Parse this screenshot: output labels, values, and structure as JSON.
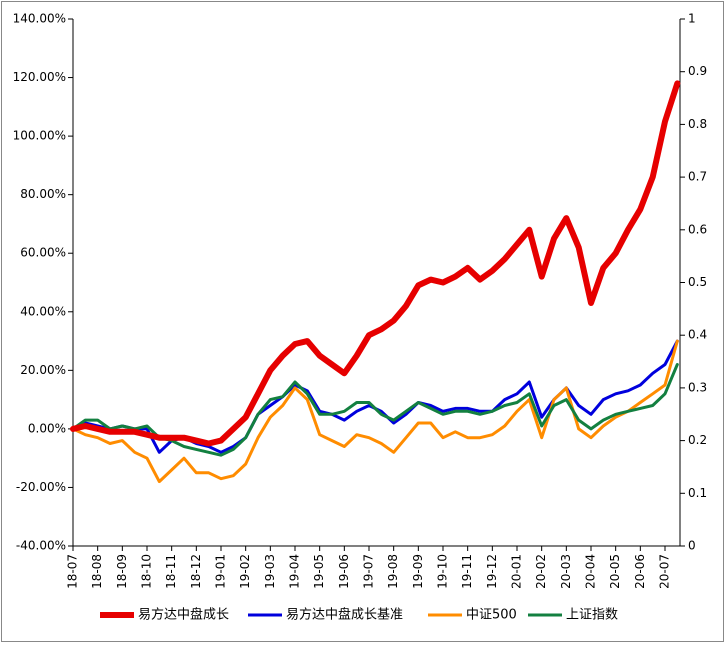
{
  "chart_data": {
    "type": "line",
    "categories": [
      "18-07",
      null,
      "18-08",
      null,
      "18-09",
      null,
      "18-10",
      null,
      "18-11",
      null,
      "18-12",
      null,
      "19-01",
      null,
      "19-02",
      null,
      "19-03",
      null,
      "19-04",
      null,
      "19-05",
      null,
      "19-06",
      null,
      "19-07",
      null,
      "19-08",
      null,
      "19-09",
      null,
      "19-10",
      null,
      "19-11",
      null,
      "19-12",
      null,
      "20-01",
      null,
      "20-02",
      null,
      "20-03",
      null,
      "20-04",
      null,
      "20-05",
      null,
      "20-06",
      null,
      "20-07",
      null
    ],
    "series": [
      {
        "name": "易方达中盘成长",
        "color": "#e60000",
        "width": 6,
        "values": [
          0,
          1,
          0,
          -1,
          -1,
          -1,
          -2,
          -3,
          -3,
          -3,
          -4,
          -5,
          -4,
          0,
          4,
          12,
          20,
          25,
          29,
          30,
          25,
          22,
          19,
          25,
          32,
          34,
          37,
          42,
          49,
          51,
          50,
          52,
          55,
          51,
          54,
          58,
          63,
          68,
          52,
          65,
          72,
          62,
          43,
          55,
          60,
          68,
          75,
          86,
          105,
          118
        ]
      },
      {
        "name": "易方达中盘成长基准",
        "color": "#0000dd",
        "width": 3,
        "values": [
          0,
          2,
          1,
          0,
          1,
          0,
          0,
          -8,
          -4,
          -3,
          -5,
          -6,
          -8,
          -6,
          -3,
          5,
          8,
          11,
          15,
          13,
          6,
          5,
          3,
          6,
          8,
          6,
          2,
          5,
          9,
          8,
          6,
          7,
          7,
          6,
          6,
          10,
          12,
          16,
          4,
          10,
          14,
          8,
          5,
          10,
          12,
          13,
          15,
          19,
          22,
          30
        ]
      },
      {
        "name": "中证500",
        "color": "#ff8c00",
        "width": 3,
        "values": [
          0,
          -2,
          -3,
          -5,
          -4,
          -8,
          -10,
          -18,
          -14,
          -10,
          -15,
          -15,
          -17,
          -16,
          -12,
          -3,
          4,
          8,
          14,
          10,
          -2,
          -4,
          -6,
          -2,
          -3,
          -5,
          -8,
          -3,
          2,
          2,
          -3,
          -1,
          -3,
          -3,
          -2,
          1,
          6,
          10,
          -3,
          10,
          14,
          0,
          -3,
          1,
          4,
          6,
          9,
          12,
          15,
          30
        ]
      },
      {
        "name": "上证指数",
        "color": "#138040",
        "width": 3,
        "values": [
          0,
          3,
          3,
          0,
          1,
          0,
          1,
          -3,
          -4,
          -6,
          -7,
          -8,
          -9,
          -7,
          -3,
          5,
          10,
          11,
          16,
          12,
          5,
          5,
          6,
          9,
          9,
          5,
          3,
          6,
          9,
          7,
          5,
          6,
          6,
          5,
          6,
          8,
          9,
          12,
          1,
          8,
          10,
          3,
          0,
          3,
          5,
          6,
          7,
          8,
          12,
          22
        ]
      }
    ],
    "ylim": [
      -40,
      140
    ],
    "yticks": [
      {
        "value": -40,
        "label": "-40.00%"
      },
      {
        "value": -20,
        "label": "-20.00%"
      },
      {
        "value": 0,
        "label": "0.00%"
      },
      {
        "value": 20,
        "label": "20.00%"
      },
      {
        "value": 40,
        "label": "40.00%"
      },
      {
        "value": 60,
        "label": "60.00%"
      },
      {
        "value": 80,
        "label": "80.00%"
      },
      {
        "value": 100,
        "label": "100.00%"
      },
      {
        "value": 120,
        "label": "120.00%"
      },
      {
        "value": 140,
        "label": "140.00%"
      }
    ],
    "y2lim": [
      0,
      1
    ],
    "y2ticks": [
      0,
      0.1,
      0.2,
      0.3,
      0.4,
      0.5,
      0.6,
      0.7,
      0.8,
      0.9,
      1
    ],
    "grid": false
  }
}
